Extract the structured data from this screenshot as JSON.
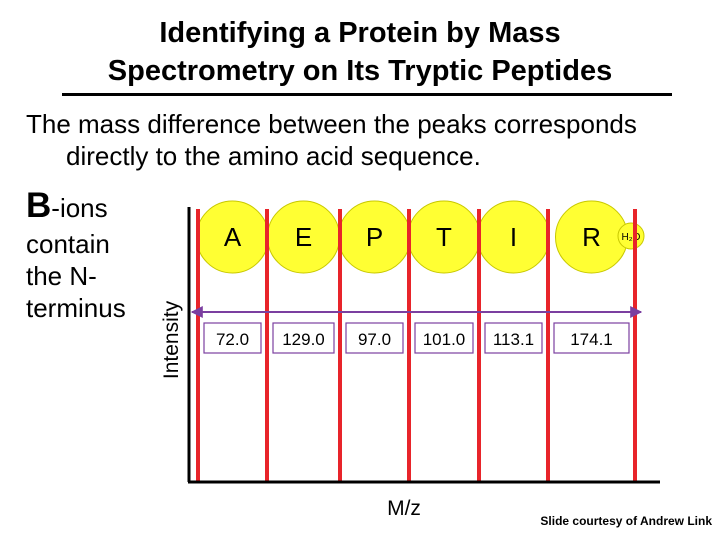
{
  "title": {
    "line1": "Identifying a Protein by Mass",
    "line2": "Spectrometry on Its Tryptic Peptides"
  },
  "subtitle": {
    "line1": "The mass difference between the peaks corresponds",
    "line2": "directly to the amino acid sequence."
  },
  "ion_label": {
    "letter": "B",
    "suffix": "-ions"
  },
  "side_text": [
    "contain",
    "the N-",
    "terminus"
  ],
  "axes": {
    "ylabel": "Intensity",
    "xlabel": "M/z"
  },
  "residues": [
    {
      "letter": "A",
      "mass": "72.0"
    },
    {
      "letter": "E",
      "mass": "129.0"
    },
    {
      "letter": "P",
      "mass": "97.0"
    },
    {
      "letter": "T",
      "mass": "101.0"
    },
    {
      "letter": "I",
      "mass": "113.1"
    },
    {
      "letter": "R",
      "mass": "174.1"
    }
  ],
  "water_label": "H₂O",
  "footer": "Slide courtesy of Andrew Link",
  "colors": {
    "peak": "#e8242a",
    "circle_fill": "#ffff33",
    "circle_stroke": "#c8c800",
    "arrow": "#7b3fa0",
    "mass_box": "#7b3fa0"
  }
}
